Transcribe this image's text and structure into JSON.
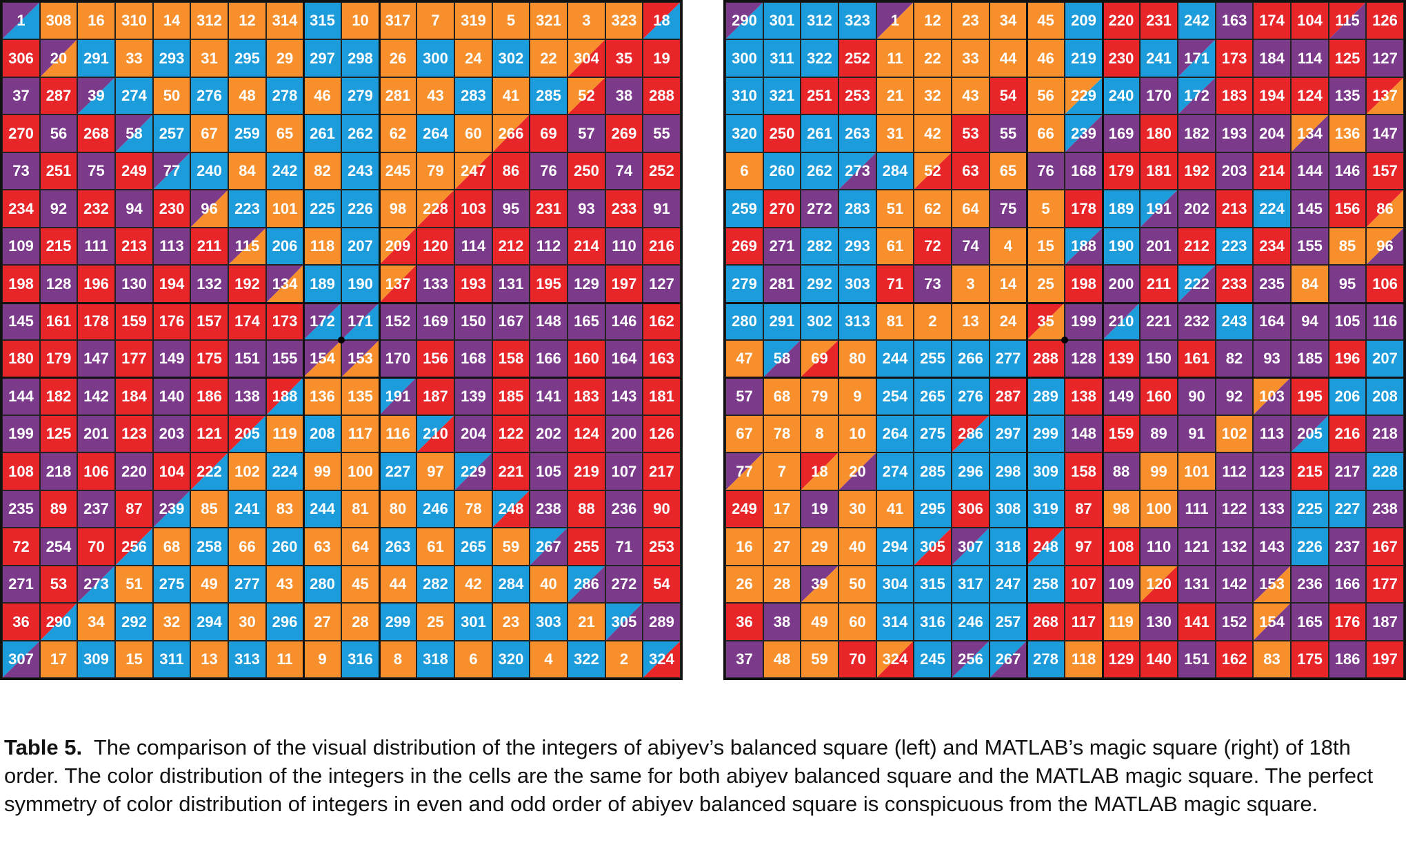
{
  "colors": {
    "1": "#7B3A8A",
    "2": "#E8262A",
    "3": "#F7902C",
    "4": "#1D9CDB"
  },
  "left_square": {
    "values": [
      [
        1,
        308,
        16,
        310,
        14,
        312,
        12,
        314,
        315,
        10,
        317,
        7,
        319,
        5,
        321,
        3,
        323,
        18
      ],
      [
        306,
        20,
        291,
        33,
        293,
        31,
        295,
        29,
        297,
        298,
        26,
        300,
        24,
        302,
        22,
        304,
        35,
        19
      ],
      [
        37,
        287,
        39,
        274,
        50,
        276,
        48,
        278,
        46,
        279,
        281,
        43,
        283,
        41,
        285,
        52,
        38,
        288
      ],
      [
        270,
        56,
        268,
        58,
        257,
        67,
        259,
        65,
        261,
        262,
        62,
        264,
        60,
        266,
        69,
        57,
        269,
        55
      ],
      [
        73,
        251,
        75,
        249,
        77,
        240,
        84,
        242,
        82,
        243,
        245,
        79,
        247,
        86,
        76,
        250,
        74,
        252
      ],
      [
        234,
        92,
        232,
        94,
        230,
        96,
        223,
        101,
        225,
        226,
        98,
        228,
        103,
        95,
        231,
        93,
        233,
        91
      ],
      [
        109,
        215,
        111,
        213,
        113,
        211,
        115,
        206,
        118,
        207,
        209,
        120,
        114,
        212,
        112,
        214,
        110,
        216
      ],
      [
        198,
        128,
        196,
        130,
        194,
        132,
        192,
        134,
        189,
        190,
        137,
        133,
        193,
        131,
        195,
        129,
        197,
        127
      ],
      [
        145,
        161,
        178,
        159,
        176,
        157,
        174,
        173,
        172,
        171,
        152,
        169,
        150,
        167,
        148,
        165,
        146,
        162
      ],
      [
        180,
        179,
        147,
        177,
        149,
        175,
        151,
        155,
        154,
        153,
        170,
        156,
        168,
        158,
        166,
        160,
        164,
        163
      ],
      [
        144,
        182,
        142,
        184,
        140,
        186,
        138,
        188,
        136,
        135,
        191,
        187,
        139,
        185,
        141,
        183,
        143,
        181
      ],
      [
        199,
        125,
        201,
        123,
        203,
        121,
        205,
        119,
        208,
        117,
        116,
        210,
        204,
        122,
        202,
        124,
        200,
        126
      ],
      [
        108,
        218,
        106,
        220,
        104,
        222,
        102,
        224,
        99,
        100,
        227,
        97,
        229,
        221,
        105,
        219,
        107,
        217
      ],
      [
        235,
        89,
        237,
        87,
        239,
        85,
        241,
        83,
        244,
        81,
        80,
        246,
        78,
        248,
        238,
        88,
        236,
        90
      ],
      [
        72,
        254,
        70,
        256,
        68,
        258,
        66,
        260,
        63,
        64,
        263,
        61,
        265,
        59,
        267,
        255,
        71,
        253
      ],
      [
        271,
        53,
        273,
        51,
        275,
        49,
        277,
        43,
        280,
        45,
        44,
        282,
        42,
        284,
        40,
        286,
        272,
        54
      ],
      [
        36,
        290,
        34,
        292,
        32,
        294,
        30,
        296,
        27,
        28,
        299,
        25,
        301,
        23,
        303,
        21,
        305,
        289
      ],
      [
        307,
        17,
        309,
        15,
        311,
        13,
        313,
        11,
        9,
        316,
        8,
        318,
        6,
        320,
        4,
        322,
        2,
        324
      ]
    ],
    "cell_colors": [
      [
        [
          1,
          4
        ],
        3,
        3,
        3,
        3,
        3,
        3,
        3,
        4,
        3,
        3,
        3,
        3,
        3,
        3,
        3,
        3,
        [
          2,
          4
        ]
      ],
      [
        2,
        [
          1,
          3
        ],
        4,
        3,
        4,
        3,
        4,
        3,
        4,
        4,
        3,
        4,
        3,
        4,
        3,
        [
          3,
          2
        ],
        2,
        2
      ],
      [
        1,
        2,
        [
          1,
          4
        ],
        4,
        3,
        4,
        3,
        4,
        3,
        4,
        3,
        3,
        4,
        3,
        4,
        [
          3,
          2
        ],
        1,
        2
      ],
      [
        2,
        1,
        2,
        [
          1,
          4
        ],
        4,
        3,
        4,
        3,
        4,
        4,
        3,
        4,
        3,
        [
          3,
          2
        ],
        2,
        1,
        2,
        1
      ],
      [
        1,
        2,
        1,
        2,
        [
          1,
          4
        ],
        4,
        3,
        4,
        3,
        4,
        3,
        3,
        [
          3,
          2
        ],
        2,
        1,
        2,
        1,
        2
      ],
      [
        2,
        1,
        2,
        1,
        2,
        [
          1,
          3
        ],
        4,
        3,
        4,
        4,
        3,
        [
          3,
          2
        ],
        2,
        1,
        2,
        1,
        2,
        1
      ],
      [
        1,
        2,
        1,
        2,
        1,
        2,
        [
          1,
          3
        ],
        4,
        3,
        4,
        [
          3,
          2
        ],
        2,
        1,
        2,
        1,
        2,
        1,
        2
      ],
      [
        2,
        1,
        2,
        1,
        2,
        1,
        2,
        [
          1,
          3
        ],
        4,
        4,
        [
          3,
          2
        ],
        1,
        2,
        1,
        2,
        1,
        2,
        1
      ],
      [
        1,
        2,
        2,
        2,
        2,
        2,
        2,
        2,
        [
          1,
          4
        ],
        [
          1,
          4
        ],
        1,
        1,
        1,
        1,
        1,
        1,
        1,
        2
      ],
      [
        2,
        2,
        1,
        2,
        1,
        2,
        1,
        1,
        [
          1,
          3
        ],
        [
          1,
          3
        ],
        1,
        2,
        1,
        2,
        1,
        2,
        1,
        2
      ],
      [
        1,
        2,
        1,
        2,
        1,
        2,
        1,
        [
          2,
          4
        ],
        3,
        3,
        [
          4,
          1
        ],
        2,
        1,
        2,
        1,
        2,
        1,
        2
      ],
      [
        1,
        2,
        1,
        2,
        1,
        2,
        [
          2,
          4
        ],
        3,
        4,
        3,
        3,
        [
          4,
          2
        ],
        1,
        2,
        1,
        2,
        1,
        2
      ],
      [
        2,
        1,
        2,
        1,
        2,
        [
          2,
          4
        ],
        3,
        4,
        3,
        3,
        4,
        3,
        [
          4,
          1
        ],
        2,
        1,
        2,
        1,
        2
      ],
      [
        1,
        2,
        1,
        2,
        [
          1,
          4
        ],
        3,
        4,
        3,
        4,
        3,
        3,
        4,
        3,
        [
          4,
          2
        ],
        1,
        2,
        1,
        2
      ],
      [
        2,
        1,
        2,
        [
          2,
          4
        ],
        3,
        4,
        3,
        4,
        3,
        3,
        4,
        3,
        4,
        3,
        [
          4,
          1
        ],
        2,
        1,
        2
      ],
      [
        1,
        2,
        [
          1,
          4
        ],
        3,
        4,
        3,
        4,
        3,
        4,
        3,
        3,
        4,
        3,
        4,
        3,
        [
          4,
          1
        ],
        1,
        2
      ],
      [
        2,
        [
          2,
          4
        ],
        3,
        4,
        3,
        4,
        3,
        4,
        3,
        3,
        4,
        3,
        4,
        3,
        4,
        3,
        [
          4,
          1
        ],
        1
      ],
      [
        [
          4,
          1
        ],
        3,
        4,
        3,
        4,
        3,
        4,
        3,
        3,
        4,
        3,
        4,
        3,
        4,
        3,
        4,
        3,
        [
          4,
          2
        ]
      ]
    ]
  },
  "right_square": {
    "values": [
      [
        290,
        301,
        312,
        323,
        1,
        12,
        23,
        34,
        45,
        209,
        220,
        231,
        242,
        163,
        174,
        104,
        115,
        126
      ],
      [
        300,
        311,
        322,
        252,
        11,
        22,
        33,
        44,
        46,
        219,
        230,
        241,
        171,
        173,
        184,
        114,
        125,
        127
      ],
      [
        310,
        321,
        251,
        253,
        21,
        32,
        43,
        54,
        56,
        229,
        240,
        170,
        172,
        183,
        194,
        124,
        135,
        137
      ],
      [
        320,
        250,
        261,
        263,
        31,
        42,
        53,
        55,
        66,
        239,
        169,
        180,
        182,
        193,
        204,
        134,
        136,
        147
      ],
      [
        6,
        260,
        262,
        273,
        284,
        52,
        63,
        65,
        76,
        168,
        179,
        181,
        192,
        203,
        214,
        144,
        146,
        157
      ],
      [
        259,
        270,
        272,
        283,
        51,
        62,
        64,
        75,
        5,
        178,
        189,
        191,
        202,
        213,
        224,
        145,
        156,
        86
      ],
      [
        269,
        271,
        282,
        293,
        61,
        72,
        74,
        4,
        15,
        188,
        190,
        201,
        212,
        223,
        234,
        155,
        85,
        96
      ],
      [
        279,
        281,
        292,
        303,
        71,
        73,
        3,
        14,
        25,
        198,
        200,
        211,
        222,
        233,
        235,
        84,
        95,
        106
      ],
      [
        280,
        291,
        302,
        313,
        81,
        2,
        13,
        24,
        35,
        199,
        210,
        221,
        232,
        243,
        164,
        94,
        105,
        116
      ],
      [
        47,
        58,
        69,
        80,
        244,
        255,
        266,
        277,
        288,
        128,
        139,
        150,
        161,
        82,
        93,
        185,
        196,
        207
      ],
      [
        57,
        68,
        79,
        9,
        254,
        265,
        276,
        287,
        289,
        138,
        149,
        160,
        90,
        92,
        103,
        195,
        206,
        208
      ],
      [
        67,
        78,
        8,
        10,
        264,
        275,
        286,
        297,
        299,
        148,
        159,
        89,
        91,
        102,
        113,
        205,
        216,
        218
      ],
      [
        77,
        7,
        18,
        20,
        274,
        285,
        296,
        298,
        309,
        158,
        88,
        99,
        101,
        112,
        123,
        215,
        217,
        228
      ],
      [
        249,
        17,
        19,
        30,
        41,
        295,
        306,
        308,
        319,
        87,
        98,
        100,
        111,
        122,
        133,
        225,
        227,
        238
      ],
      [
        16,
        27,
        29,
        40,
        294,
        305,
        307,
        318,
        248,
        97,
        108,
        110,
        121,
        132,
        143,
        226,
        237,
        167
      ],
      [
        26,
        28,
        39,
        50,
        304,
        315,
        317,
        247,
        258,
        107,
        109,
        120,
        131,
        142,
        153,
        236,
        166,
        177
      ],
      [
        36,
        38,
        49,
        60,
        314,
        316,
        246,
        257,
        268,
        117,
        119,
        130,
        141,
        152,
        154,
        165,
        176,
        187
      ],
      [
        37,
        48,
        59,
        70,
        324,
        245,
        256,
        267,
        278,
        118,
        129,
        140,
        151,
        162,
        83,
        175,
        186,
        197
      ]
    ],
    "cell_colors": [
      [
        [
          1,
          4
        ],
        4,
        4,
        4,
        [
          1,
          3
        ],
        3,
        3,
        3,
        3,
        4,
        2,
        2,
        4,
        1,
        2,
        2,
        [
          2,
          1
        ],
        2
      ],
      [
        4,
        4,
        4,
        2,
        3,
        3,
        3,
        3,
        3,
        4,
        2,
        4,
        [
          1,
          4
        ],
        2,
        1,
        1,
        2,
        1
      ],
      [
        4,
        4,
        2,
        2,
        3,
        3,
        3,
        2,
        3,
        [
          3,
          4
        ],
        4,
        1,
        [
          4,
          1
        ],
        2,
        2,
        2,
        1,
        [
          2,
          3
        ]
      ],
      [
        4,
        2,
        4,
        4,
        3,
        3,
        2,
        1,
        3,
        [
          4,
          1
        ],
        1,
        2,
        1,
        1,
        1,
        [
          3,
          1
        ],
        3,
        1
      ],
      [
        3,
        4,
        4,
        [
          4,
          1
        ],
        4,
        [
          3,
          2
        ],
        2,
        3,
        1,
        1,
        2,
        2,
        2,
        1,
        2,
        1,
        1,
        2
      ],
      [
        4,
        2,
        1,
        4,
        3,
        3,
        3,
        1,
        3,
        2,
        4,
        [
          4,
          1
        ],
        1,
        2,
        4,
        1,
        2,
        [
          2,
          3
        ]
      ],
      [
        2,
        1,
        4,
        4,
        3,
        2,
        1,
        3,
        3,
        [
          4,
          1
        ],
        4,
        1,
        2,
        4,
        2,
        1,
        3,
        [
          3,
          1
        ]
      ],
      [
        4,
        1,
        4,
        4,
        2,
        1,
        3,
        3,
        3,
        2,
        1,
        2,
        [
          4,
          1
        ],
        2,
        1,
        3,
        1,
        2
      ],
      [
        4,
        4,
        4,
        4,
        3,
        3,
        3,
        3,
        [
          2,
          3
        ],
        1,
        [
          1,
          4
        ],
        1,
        1,
        4,
        1,
        1,
        1,
        1
      ],
      [
        3,
        [
          4,
          1
        ],
        [
          3,
          2
        ],
        3,
        4,
        4,
        4,
        4,
        2,
        1,
        2,
        1,
        2,
        1,
        1,
        1,
        2,
        4
      ],
      [
        1,
        3,
        3,
        3,
        4,
        4,
        4,
        2,
        4,
        2,
        1,
        2,
        1,
        1,
        [
          3,
          1
        ],
        2,
        4,
        4
      ],
      [
        3,
        3,
        3,
        3,
        4,
        4,
        [
          2,
          4
        ],
        4,
        4,
        1,
        2,
        1,
        1,
        3,
        1,
        [
          1,
          4
        ],
        2,
        1
      ],
      [
        [
          1,
          3
        ],
        3,
        [
          2,
          3
        ],
        [
          3,
          1
        ],
        4,
        4,
        4,
        4,
        4,
        2,
        1,
        3,
        3,
        1,
        1,
        2,
        1,
        4
      ],
      [
        2,
        3,
        1,
        3,
        3,
        4,
        2,
        4,
        4,
        2,
        3,
        3,
        1,
        1,
        1,
        4,
        4,
        1
      ],
      [
        3,
        3,
        3,
        3,
        4,
        [
          4,
          2
        ],
        [
          1,
          4
        ],
        4,
        [
          2,
          4
        ],
        2,
        2,
        1,
        1,
        1,
        1,
        4,
        1,
        2
      ],
      [
        3,
        3,
        [
          1,
          3
        ],
        3,
        4,
        4,
        4,
        4,
        4,
        2,
        1,
        [
          3,
          2
        ],
        1,
        1,
        [
          1,
          3
        ],
        1,
        1,
        2
      ],
      [
        2,
        1,
        3,
        3,
        4,
        4,
        4,
        4,
        2,
        2,
        3,
        1,
        2,
        1,
        [
          3,
          1
        ],
        1,
        2,
        1
      ],
      [
        1,
        3,
        3,
        2,
        [
          3,
          2
        ],
        4,
        [
          1,
          4
        ],
        [
          4,
          1
        ],
        4,
        3,
        2,
        2,
        1,
        2,
        3,
        2,
        1,
        2
      ]
    ]
  },
  "caption": {
    "label": "Table 5.",
    "text": "The comparison of the visual distribution of the integers of abiyev’s balanced square (left) and MATLAB’s magic square (right) of 18th order. The color distribution of the integers in the cells are the same for both abiyev balanced square and the MATLAB magic square. The perfect symmetry of color distribution of integers in even and odd order of abiyev balanced square is conspicuous from the MATLAB magic square."
  }
}
